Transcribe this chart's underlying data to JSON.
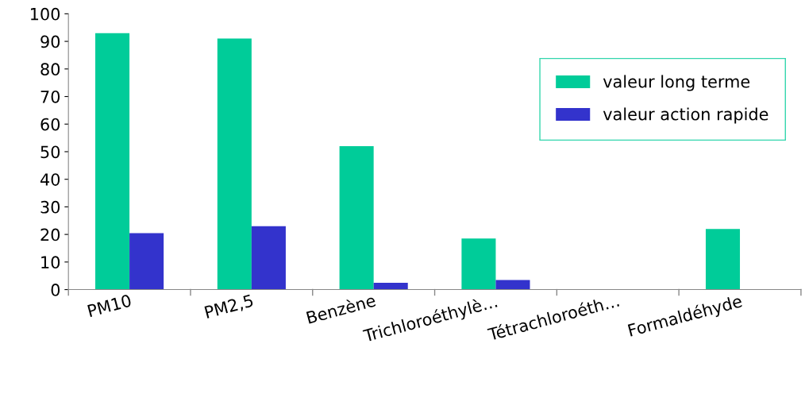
{
  "chart_data": {
    "type": "bar",
    "categories": [
      "PM10",
      "PM2,5",
      "Benzène",
      "Trichloroéthylè…",
      "Tétrachloroéth…",
      "Formaldéhyde"
    ],
    "series": [
      {
        "name": "valeur long terme",
        "color": "#00cc99",
        "values": [
          93,
          91,
          52,
          18.5,
          null,
          22
        ]
      },
      {
        "name": "valeur action rapide",
        "color": "#3333cc",
        "values": [
          20.5,
          23,
          2.5,
          3.5,
          null,
          null
        ]
      }
    ],
    "ylim": [
      0,
      100
    ],
    "yticks": [
      0,
      10,
      20,
      30,
      40,
      50,
      60,
      70,
      80,
      90,
      100
    ],
    "grid": false,
    "legend": "right"
  }
}
